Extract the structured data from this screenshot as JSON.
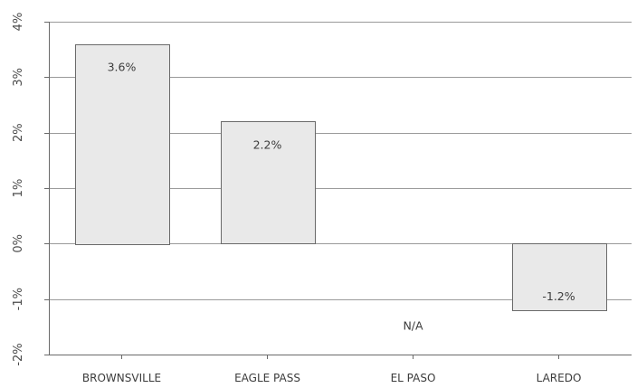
{
  "chart_data": {
    "type": "bar",
    "title": "",
    "xlabel": "",
    "ylabel": "",
    "categories": [
      "BROWNSVILLE",
      "EAGLE PASS",
      "EL PASO",
      "LAREDO"
    ],
    "values": [
      3.6,
      2.2,
      null,
      -1.2
    ],
    "data_labels": [
      "3.6%",
      "2.2%",
      "N/A",
      "-1.2%"
    ],
    "ylim": [
      -2,
      4
    ],
    "yticks": [
      4,
      3,
      2,
      1,
      0,
      -1,
      -2
    ],
    "ytick_labels": [
      "4%",
      "3%",
      "2%",
      "1%",
      "0%",
      "-1%",
      "-2%"
    ],
    "grid": true,
    "legend": "none",
    "colors": {
      "bar_fill": "#e9e9e9",
      "bar_stroke": "#6a6a6a",
      "grid": "#9a9a9a"
    }
  }
}
